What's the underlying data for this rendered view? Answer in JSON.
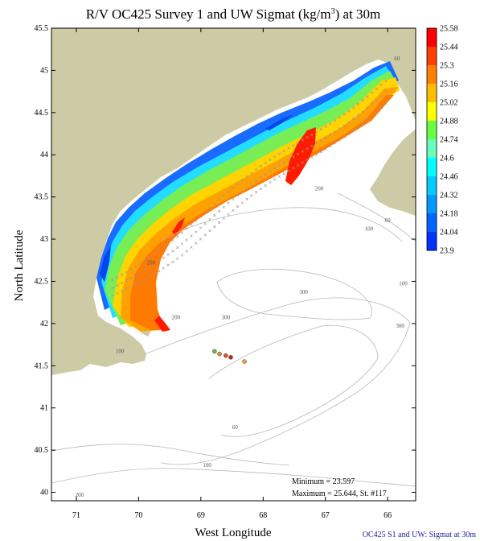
{
  "map": {
    "title_prefix": "R/V OC425 Survey 1 and UW Sigmat (kg/m",
    "title_sup": "3",
    "title_suffix": ") at 30m",
    "xlabel": "West Longitude",
    "ylabel": "North Latitude",
    "x_ticks": [
      "71",
      "70",
      "69",
      "68",
      "67",
      "66"
    ],
    "x_tick_values": [
      71,
      70,
      69,
      68,
      67,
      66
    ],
    "y_ticks": [
      "45.5",
      "45",
      "44.5",
      "44",
      "43.5",
      "43",
      "42.5",
      "42",
      "41.5",
      "41",
      "40.5",
      "40"
    ],
    "y_tick_values": [
      45.5,
      45,
      44.5,
      44,
      43.5,
      43,
      42.5,
      42,
      41.5,
      41,
      40.5,
      40
    ],
    "lon_range": [
      71.4,
      65.55
    ],
    "lat_range": [
      39.9,
      45.5
    ],
    "minimum_text": "Minimum = 23.597",
    "maximum_text": "Maximum = 25.644, St. #117",
    "footer": "OC425  S1 and UW: Sigmat at 30m",
    "contour_labels": [
      {
        "text": "60",
        "lon": 65.85,
        "lat": 45.12
      },
      {
        "text": "200",
        "lon": 67.1,
        "lat": 43.58
      },
      {
        "text": "60",
        "lon": 66.0,
        "lat": 43.2
      },
      {
        "text": "100",
        "lon": 66.3,
        "lat": 43.1
      },
      {
        "text": "200",
        "lon": 69.8,
        "lat": 42.7
      },
      {
        "text": "100",
        "lon": 65.75,
        "lat": 42.45
      },
      {
        "text": "300",
        "lon": 67.35,
        "lat": 42.35
      },
      {
        "text": "200",
        "lon": 69.4,
        "lat": 42.05
      },
      {
        "text": "300",
        "lon": 68.6,
        "lat": 42.05
      },
      {
        "text": "300",
        "lon": 65.8,
        "lat": 41.95
      },
      {
        "text": "100",
        "lon": 70.3,
        "lat": 41.65
      },
      {
        "text": "60",
        "lon": 68.45,
        "lat": 40.75
      },
      {
        "text": "100",
        "lon": 68.9,
        "lat": 40.3
      },
      {
        "text": "200",
        "lon": 70.95,
        "lat": 39.95
      }
    ],
    "survey_points": [
      {
        "lon": 68.78,
        "lat": 41.67,
        "color": "#66bb44"
      },
      {
        "lon": 68.7,
        "lat": 41.64,
        "color": "#dd8833"
      },
      {
        "lon": 68.6,
        "lat": 41.62,
        "color": "#cc5522"
      },
      {
        "lon": 68.52,
        "lat": 41.6,
        "color": "#cc2211"
      },
      {
        "lon": 68.3,
        "lat": 41.55,
        "color": "#eea030"
      }
    ]
  },
  "colorbar": {
    "labels": [
      "25.58",
      "25.44",
      "25.3",
      "25.16",
      "25.02",
      "24.88",
      "24.74",
      "24.6",
      "24.46",
      "24.32",
      "24.18",
      "24.04",
      "23.9"
    ],
    "colors": [
      "#ff0000",
      "#ff4000",
      "#ff8000",
      "#ffbf00",
      "#ffff00",
      "#66ff44",
      "#66ffbb",
      "#00ffff",
      "#00ccff",
      "#0099ff",
      "#0066ff",
      "#0033ff"
    ]
  }
}
